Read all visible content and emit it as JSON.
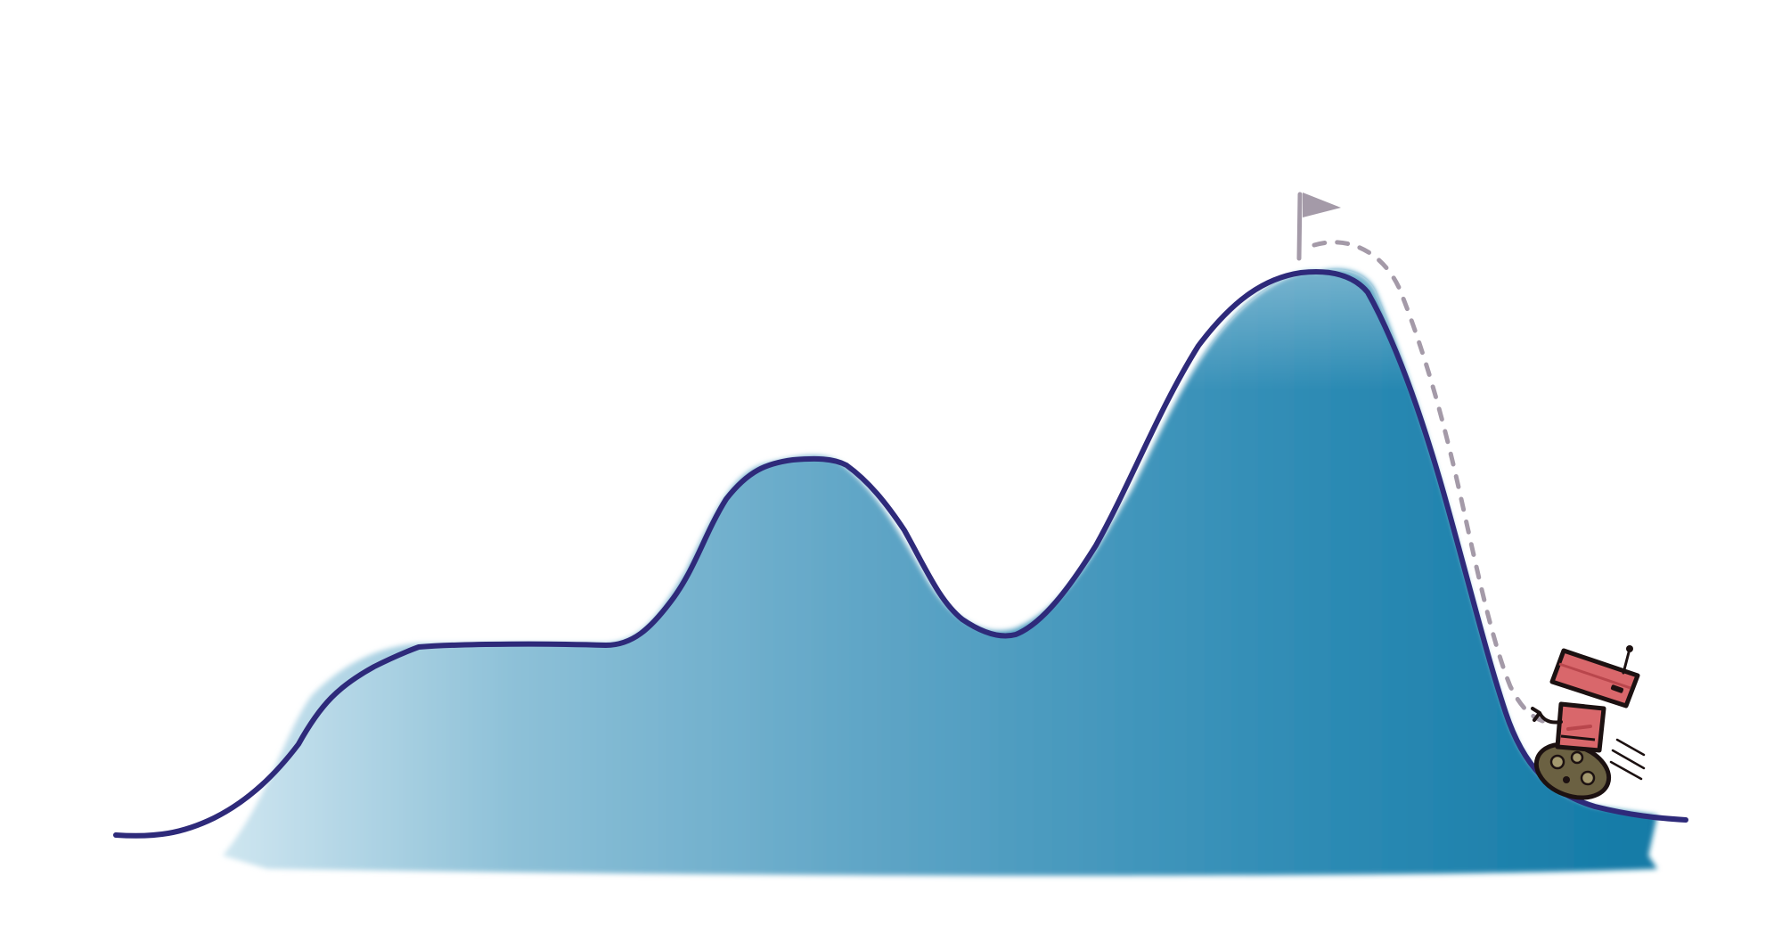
{
  "colors": {
    "background": "#ffffff",
    "outline": "#2e2a7a",
    "fill_light": "#b9dbe9",
    "fill_mid": "#5da7c7",
    "fill_dark": "#137aa6",
    "flag": "#a49aa8",
    "fall_trail": "#a49aa8",
    "robot_body": "#d9676b",
    "robot_body_dark": "#b9464c",
    "robot_tread": "#6b6142",
    "robot_ink": "#1c1111"
  },
  "icons": {
    "summit_marker": "flag-icon",
    "fall_path": "dashed-trail",
    "character": "robot-icon"
  }
}
